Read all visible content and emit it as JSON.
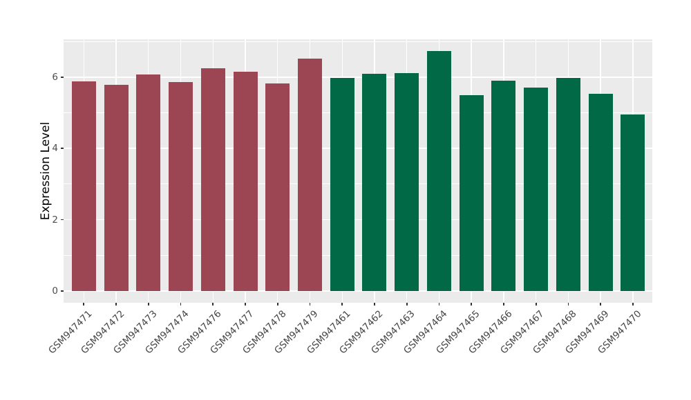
{
  "chart_data": {
    "type": "bar",
    "title": "",
    "xlabel": "",
    "ylabel": "Expression Level",
    "categories": [
      "GSM947471",
      "GSM947472",
      "GSM947473",
      "GSM947474",
      "GSM947476",
      "GSM947477",
      "GSM947478",
      "GSM947479",
      "GSM947461",
      "GSM947462",
      "GSM947463",
      "GSM947464",
      "GSM947465",
      "GSM947466",
      "GSM947467",
      "GSM947468",
      "GSM947469",
      "GSM947470"
    ],
    "values": [
      5.88,
      5.78,
      6.08,
      5.87,
      6.24,
      6.16,
      5.82,
      6.52,
      5.98,
      6.1,
      6.11,
      6.74,
      5.5,
      5.89,
      5.71,
      5.98,
      5.53,
      4.96
    ],
    "bar_colors": [
      "#9C4553",
      "#9C4553",
      "#9C4553",
      "#9C4553",
      "#9C4553",
      "#9C4553",
      "#9C4553",
      "#9C4553",
      "#016945",
      "#016945",
      "#016945",
      "#016945",
      "#016945",
      "#016945",
      "#016945",
      "#016945",
      "#016945",
      "#016945"
    ],
    "groups": [
      {
        "color": "#9C4553",
        "count": 8
      },
      {
        "color": "#016945",
        "count": 10
      }
    ],
    "yticks": [
      0,
      2,
      4,
      6
    ],
    "ylim": [
      -0.32,
      7.06
    ],
    "grid": {
      "major_y": [
        0,
        2,
        4,
        6
      ],
      "minor_y": [
        1,
        3,
        5,
        7
      ],
      "color": "#ffffff",
      "vertical_at_each_category": true
    },
    "panel_bg": "#EBEBEB",
    "legend": "none"
  }
}
